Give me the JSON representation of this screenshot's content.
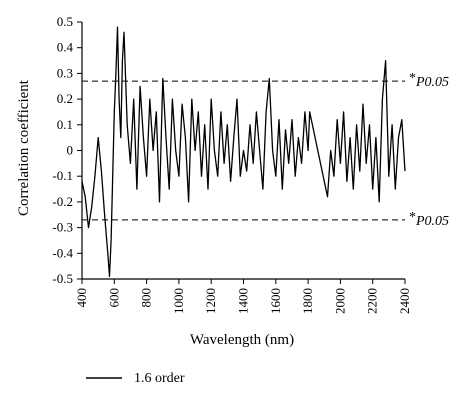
{
  "chart_data": {
    "type": "line",
    "xlabel": "Wavelength (nm)",
    "ylabel": "Correlation coefficient",
    "xlim": [
      400,
      2400
    ],
    "ylim": [
      -0.5,
      0.5
    ],
    "x_ticks": [
      "400",
      "600",
      "800",
      "1000",
      "1200",
      "1400",
      "1600",
      "1800",
      "2000",
      "2200",
      "2400"
    ],
    "y_ticks": [
      "0.5",
      "0.4",
      "0.3",
      "0.2",
      "0.1",
      "0",
      "-0.1",
      "-0.2",
      "-0.3",
      "-0.4",
      "-0.5"
    ],
    "series": [
      {
        "name": "1.6 order",
        "color": "#000000",
        "points": [
          [
            400,
            -0.12
          ],
          [
            420,
            -0.18
          ],
          [
            440,
            -0.3
          ],
          [
            460,
            -0.22
          ],
          [
            480,
            -0.1
          ],
          [
            500,
            0.05
          ],
          [
            520,
            -0.08
          ],
          [
            540,
            -0.25
          ],
          [
            560,
            -0.4
          ],
          [
            570,
            -0.49
          ],
          [
            580,
            -0.35
          ],
          [
            590,
            -0.1
          ],
          [
            600,
            0.15
          ],
          [
            610,
            0.3
          ],
          [
            620,
            0.48
          ],
          [
            630,
            0.2
          ],
          [
            640,
            0.05
          ],
          [
            650,
            0.35
          ],
          [
            660,
            0.46
          ],
          [
            680,
            0.1
          ],
          [
            700,
            -0.05
          ],
          [
            720,
            0.2
          ],
          [
            740,
            -0.15
          ],
          [
            760,
            0.25
          ],
          [
            780,
            0.05
          ],
          [
            800,
            -0.1
          ],
          [
            820,
            0.2
          ],
          [
            840,
            0.0
          ],
          [
            860,
            0.15
          ],
          [
            880,
            -0.2
          ],
          [
            900,
            0.28
          ],
          [
            920,
            0.05
          ],
          [
            940,
            -0.15
          ],
          [
            960,
            0.2
          ],
          [
            980,
            0.0
          ],
          [
            1000,
            -0.1
          ],
          [
            1020,
            0.18
          ],
          [
            1040,
            0.05
          ],
          [
            1060,
            -0.2
          ],
          [
            1080,
            0.2
          ],
          [
            1100,
            0.0
          ],
          [
            1120,
            0.15
          ],
          [
            1140,
            -0.1
          ],
          [
            1160,
            0.1
          ],
          [
            1180,
            -0.15
          ],
          [
            1200,
            0.2
          ],
          [
            1220,
            0.0
          ],
          [
            1240,
            -0.1
          ],
          [
            1260,
            0.15
          ],
          [
            1280,
            -0.05
          ],
          [
            1300,
            0.1
          ],
          [
            1320,
            -0.12
          ],
          [
            1340,
            0.05
          ],
          [
            1360,
            0.2
          ],
          [
            1380,
            -0.1
          ],
          [
            1400,
            0.0
          ],
          [
            1420,
            -0.08
          ],
          [
            1440,
            0.1
          ],
          [
            1460,
            -0.05
          ],
          [
            1480,
            0.15
          ],
          [
            1500,
            0.0
          ],
          [
            1520,
            -0.15
          ],
          [
            1540,
            0.15
          ],
          [
            1560,
            0.28
          ],
          [
            1580,
            0.0
          ],
          [
            1600,
            -0.1
          ],
          [
            1620,
            0.12
          ],
          [
            1640,
            -0.15
          ],
          [
            1660,
            0.08
          ],
          [
            1680,
            -0.05
          ],
          [
            1700,
            0.12
          ],
          [
            1720,
            -0.1
          ],
          [
            1740,
            0.05
          ],
          [
            1760,
            -0.05
          ],
          [
            1780,
            0.15
          ],
          [
            1800,
            0.0
          ],
          [
            1810,
            0.15
          ],
          [
            1920,
            -0.18
          ],
          [
            1940,
            0.0
          ],
          [
            1960,
            -0.1
          ],
          [
            1980,
            0.12
          ],
          [
            2000,
            -0.05
          ],
          [
            2020,
            0.15
          ],
          [
            2040,
            -0.12
          ],
          [
            2060,
            0.05
          ],
          [
            2080,
            -0.15
          ],
          [
            2100,
            0.1
          ],
          [
            2120,
            -0.08
          ],
          [
            2140,
            0.18
          ],
          [
            2160,
            -0.05
          ],
          [
            2180,
            0.1
          ],
          [
            2200,
            -0.15
          ],
          [
            2220,
            0.05
          ],
          [
            2240,
            -0.2
          ],
          [
            2260,
            0.2
          ],
          [
            2280,
            0.35
          ],
          [
            2300,
            -0.1
          ],
          [
            2320,
            0.1
          ],
          [
            2340,
            -0.15
          ],
          [
            2360,
            0.05
          ],
          [
            2380,
            0.12
          ],
          [
            2400,
            -0.08
          ]
        ]
      }
    ],
    "reference_lines": [
      {
        "y": 0.27,
        "style": "dashed",
        "label_prefix": "*",
        "label": "P0.05"
      },
      {
        "y": -0.27,
        "style": "dashed",
        "label_prefix": "*",
        "label": "P0.05"
      }
    ],
    "grid": false,
    "legend": {
      "position": "bottom-left",
      "entries": [
        "1.6 order"
      ]
    }
  }
}
